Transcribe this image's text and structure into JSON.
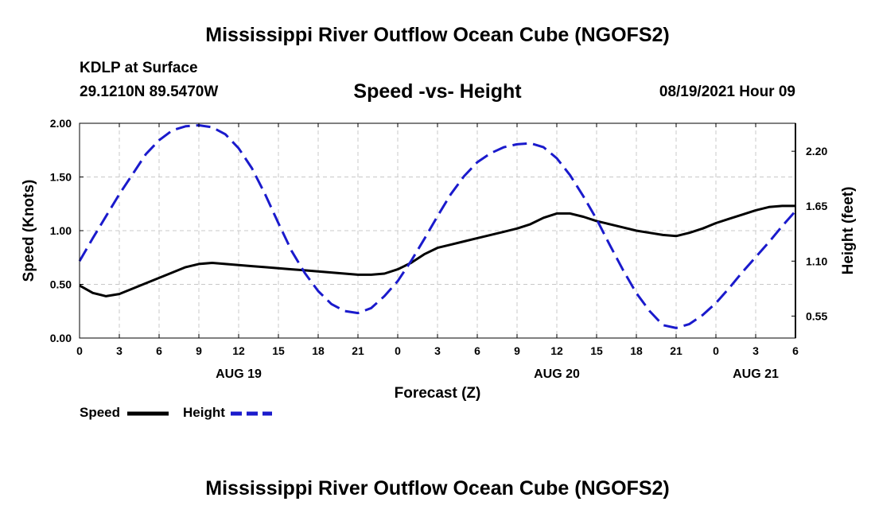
{
  "header": {
    "title": "Mississippi River Outflow Ocean Cube (NGOFS2)",
    "station": "KDLP at Surface",
    "coords": "29.1210N  89.5470W",
    "subtitle": "Speed -vs- Height",
    "datetime": "08/19/2021 Hour 09"
  },
  "footer": {
    "title": "Mississippi River Outflow Ocean Cube (NGOFS2)"
  },
  "legend": {
    "speed_label": "Speed",
    "height_label": "Height"
  },
  "colors": {
    "speed": "#000000",
    "height": "#1a1acc",
    "grid": "#c8c8c8"
  },
  "chart_data": {
    "type": "line",
    "title": "Speed -vs- Height",
    "xlabel": "Forecast (Z)",
    "ylabel_left": "Speed (Knots)",
    "ylabel_right": "Height (feet)",
    "xlim": [
      0,
      54
    ],
    "ylim_left": [
      0,
      2.0
    ],
    "ylim_right": [
      0.33,
      2.48
    ],
    "x_ticks": [
      0,
      3,
      6,
      9,
      12,
      15,
      18,
      21,
      24,
      27,
      30,
      33,
      36,
      39,
      42,
      45,
      48,
      51,
      54
    ],
    "x_tick_labels": [
      "0",
      "3",
      "6",
      "9",
      "12",
      "15",
      "18",
      "21",
      "0",
      "3",
      "6",
      "9",
      "12",
      "15",
      "18",
      "21",
      "0",
      "3",
      "6"
    ],
    "date_labels": [
      {
        "x": 12,
        "label": "AUG 19"
      },
      {
        "x": 36,
        "label": "AUG 20"
      },
      {
        "x": 51,
        "label": "AUG 21"
      }
    ],
    "y_left_ticks": [
      0,
      0.5,
      1.0,
      1.5,
      2.0
    ],
    "y_left_tick_labels": [
      "0.00",
      "0.50",
      "1.00",
      "1.50",
      "2.00"
    ],
    "y_right_ticks": [
      0.55,
      1.1,
      1.65,
      2.2
    ],
    "y_right_tick_labels": [
      "0.55",
      "1.10",
      "1.65",
      "2.20"
    ],
    "grid": true,
    "series": [
      {
        "name": "Speed",
        "axis": "left",
        "style": "solid",
        "x": [
          0,
          1,
          2,
          3,
          4,
          5,
          6,
          7,
          8,
          9,
          10,
          11,
          12,
          13,
          14,
          15,
          16,
          17,
          18,
          19,
          20,
          21,
          22,
          23,
          24,
          25,
          26,
          27,
          28,
          29,
          30,
          31,
          32,
          33,
          34,
          35,
          36,
          37,
          38,
          39,
          40,
          41,
          42,
          43,
          44,
          45,
          46,
          47,
          48,
          49,
          50,
          51,
          52,
          53,
          54
        ],
        "values": [
          0.49,
          0.42,
          0.39,
          0.41,
          0.46,
          0.51,
          0.56,
          0.61,
          0.66,
          0.69,
          0.7,
          0.69,
          0.68,
          0.67,
          0.66,
          0.65,
          0.64,
          0.63,
          0.62,
          0.61,
          0.6,
          0.59,
          0.59,
          0.6,
          0.64,
          0.7,
          0.78,
          0.84,
          0.87,
          0.9,
          0.93,
          0.96,
          0.99,
          1.02,
          1.06,
          1.12,
          1.16,
          1.16,
          1.13,
          1.09,
          1.06,
          1.03,
          1.0,
          0.98,
          0.96,
          0.95,
          0.98,
          1.02,
          1.07,
          1.11,
          1.15,
          1.19,
          1.22,
          1.23,
          1.23
        ]
      },
      {
        "name": "Height",
        "axis": "right",
        "style": "dashed",
        "x": [
          0,
          1,
          2,
          3,
          4,
          5,
          6,
          7,
          8,
          9,
          10,
          11,
          12,
          13,
          14,
          15,
          16,
          17,
          18,
          19,
          20,
          21,
          22,
          23,
          24,
          25,
          26,
          27,
          28,
          29,
          30,
          31,
          32,
          33,
          34,
          35,
          36,
          37,
          38,
          39,
          40,
          41,
          42,
          43,
          44,
          45,
          46,
          47,
          48,
          49,
          50,
          51,
          52,
          53,
          54
        ],
        "values": [
          1.1,
          1.33,
          1.55,
          1.77,
          1.97,
          2.17,
          2.31,
          2.41,
          2.45,
          2.46,
          2.44,
          2.37,
          2.23,
          2.03,
          1.77,
          1.48,
          1.2,
          0.98,
          0.8,
          0.67,
          0.6,
          0.58,
          0.63,
          0.75,
          0.9,
          1.1,
          1.32,
          1.55,
          1.77,
          1.95,
          2.09,
          2.18,
          2.24,
          2.27,
          2.28,
          2.24,
          2.13,
          1.96,
          1.75,
          1.52,
          1.26,
          1.01,
          0.78,
          0.6,
          0.46,
          0.43,
          0.47,
          0.56,
          0.68,
          0.83,
          0.99,
          1.14,
          1.29,
          1.45,
          1.6
        ]
      }
    ]
  }
}
